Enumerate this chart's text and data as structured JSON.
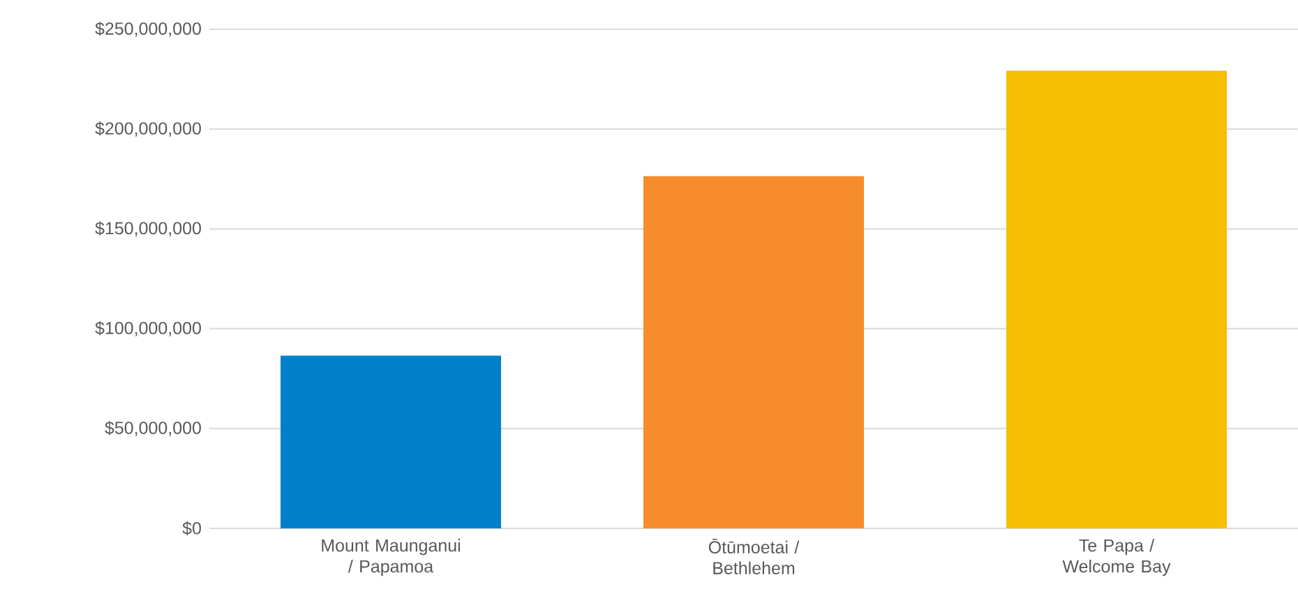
{
  "chart_data": {
    "type": "bar",
    "categories": [
      "Mount Maunganui / Papamoa",
      "Ōtūmoetai / Bethlehem",
      "Te Papa / Welcome Bay"
    ],
    "values": [
      86500000,
      176400000,
      229200000
    ],
    "colors": [
      "#0080cb",
      "#f78c2d",
      "#f5be00"
    ],
    "ylim": [
      0,
      250000000
    ],
    "yticks": [
      {
        "value": 0,
        "label": "$0"
      },
      {
        "value": 50000000,
        "label": "$50,000,000"
      },
      {
        "value": 100000000,
        "label": "$100,000,000"
      },
      {
        "value": 150000000,
        "label": "$150,000,000"
      },
      {
        "value": 200000000,
        "label": "$200,000,000"
      },
      {
        "value": 250000000,
        "label": "$250,000,000"
      }
    ],
    "grid": "y"
  }
}
